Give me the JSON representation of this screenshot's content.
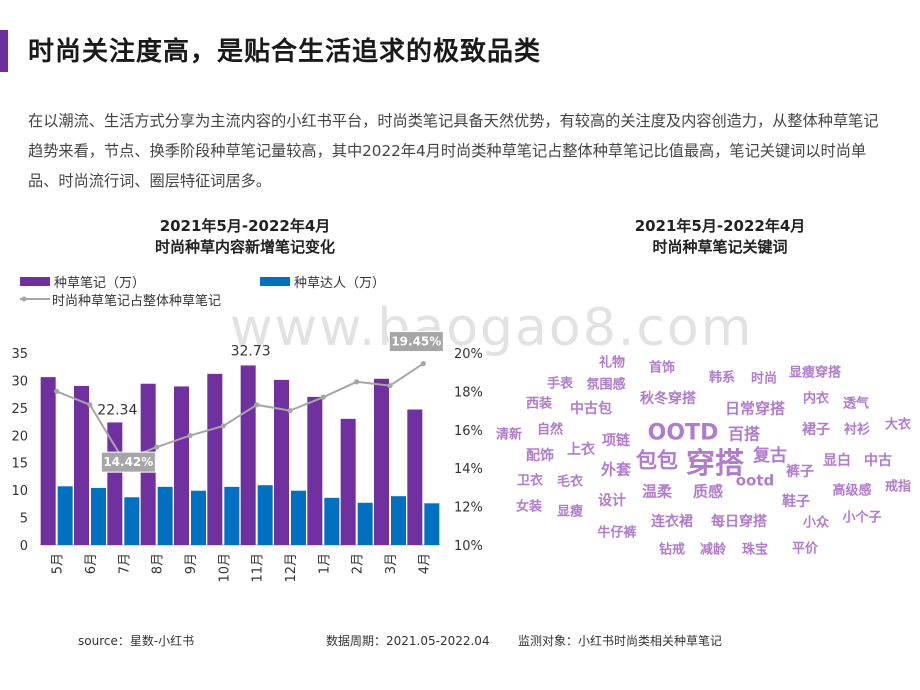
{
  "title": "时尚关注度高，是贴合生活追求的极致品类",
  "intro": "在以潮流、生活方式分享为主流内容的小红书平台，时尚类笔记具备天然优势，有较高的关注度及内容创造力，从整体种草笔记趋势来看，节点、换季阶段种草笔记量较高，其中2022年4月时尚类种草笔记占整体种草笔记比值最高，笔记关键词以时尚单品、时尚流行词、圈层特征词居多。",
  "left_chart_title": [
    "2021年5月-2022年4月",
    "时尚种草内容新增笔记变化"
  ],
  "right_chart_title": [
    "2021年5月-2022年4月",
    "时尚种草笔记关键词"
  ],
  "legend": {
    "notes": "种草笔记（万）",
    "creators": "种草达人（万）",
    "ratio": "时尚种草笔记占整体种草笔记"
  },
  "colors": {
    "notes": "#7030a0",
    "creators": "#0070c0",
    "ratio": "#a6a6a6",
    "accent": "#6d2f9c",
    "word": "#b07ccc"
  },
  "chart_data": {
    "type": "bar",
    "categories": [
      "5月",
      "6月",
      "7月",
      "8月",
      "9月",
      "10月",
      "11月",
      "12月",
      "1月",
      "2月",
      "3月",
      "4月"
    ],
    "series": [
      {
        "name": "种草笔记（万）",
        "type": "bar",
        "axis": "left",
        "values": [
          30.6,
          29.0,
          22.34,
          29.4,
          28.9,
          31.2,
          32.73,
          30.1,
          27.0,
          23.0,
          30.3,
          24.7
        ]
      },
      {
        "name": "种草达人（万）",
        "type": "bar",
        "axis": "left",
        "values": [
          10.7,
          10.4,
          8.7,
          10.6,
          9.9,
          10.6,
          10.9,
          9.9,
          8.6,
          7.7,
          8.9,
          7.6
        ]
      },
      {
        "name": "时尚种草笔记占整体种草笔记",
        "type": "line",
        "axis": "right",
        "values": [
          18.0,
          17.3,
          14.42,
          15.1,
          15.7,
          16.2,
          17.3,
          17.0,
          17.7,
          18.5,
          18.3,
          19.45
        ]
      }
    ],
    "y_left": {
      "min": 0,
      "max": 35,
      "ticks": [
        "0",
        "5",
        "10",
        "15",
        "20",
        "25",
        "30",
        "35"
      ]
    },
    "y_right": {
      "min": 10,
      "max": 20,
      "ticks": [
        "10%",
        "12%",
        "14%",
        "16%",
        "18%",
        "20%"
      ]
    },
    "data_labels": [
      {
        "series": 0,
        "index": 2,
        "text": "22.34"
      },
      {
        "series": 0,
        "index": 6,
        "text": "32.73"
      },
      {
        "series": 2,
        "index": 2,
        "text": "14.42%"
      },
      {
        "series": 2,
        "index": 11,
        "text": "19.45%"
      }
    ]
  },
  "word_cloud": [
    "礼物",
    "首饰",
    "韩系",
    "时尚",
    "显瘦穿搭",
    "手表",
    "氛围感",
    "秋冬穿搭",
    "内衣",
    "透气",
    "西装",
    "中古包",
    "日常穿搭",
    "裙子",
    "衬衫",
    "大衣",
    "清新",
    "自然",
    "OOTD",
    "百搭",
    "项链",
    "上衣",
    "复古",
    "显白",
    "中古",
    "配饰",
    "包包",
    "穿搭",
    "裤子",
    "卫衣",
    "毛衣",
    "外套",
    "ootd",
    "戒指",
    "温柔",
    "质感",
    "高级感",
    "女装",
    "设计",
    "鞋子",
    "显瘦",
    "小个子",
    "连衣裙",
    "每日穿搭",
    "小众",
    "牛仔裤",
    "钻戒",
    "减龄",
    "珠宝",
    "平价"
  ],
  "watermark": "www.baogao8.com",
  "footer": {
    "source": "source：星数-小红书",
    "period": "数据周期：2021.05-2022.04",
    "object": "监测对象：小红书时尚类相关种草笔记"
  }
}
